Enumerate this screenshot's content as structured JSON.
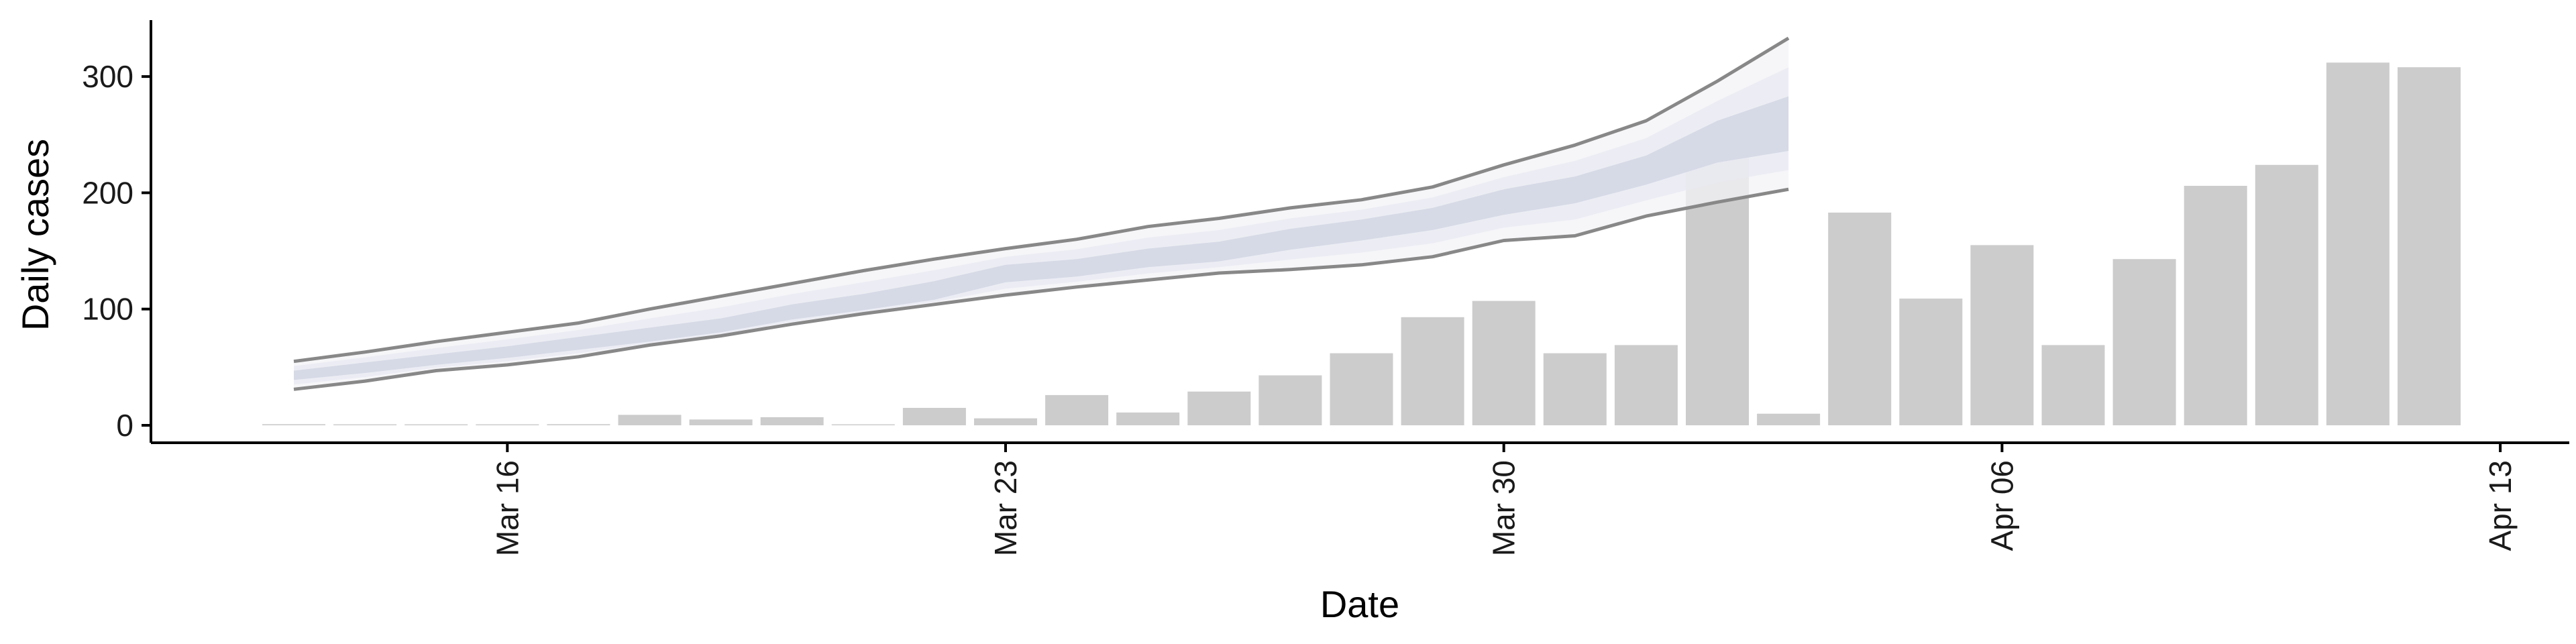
{
  "chart_data": {
    "type": "bar",
    "title": "",
    "xlabel": "Date",
    "ylabel": "Daily cases",
    "ylim": [
      -15,
      350
    ],
    "x_ticks": [
      "Mar 16",
      "Mar 23",
      "Mar 30",
      "Apr 06",
      "Apr 13"
    ],
    "y_ticks": [
      0,
      100,
      200,
      300
    ],
    "grid": false,
    "legend": "none",
    "bars": {
      "dates": [
        "2020-03-13",
        "2020-03-14",
        "2020-03-15",
        "2020-03-16",
        "2020-03-17",
        "2020-03-18",
        "2020-03-19",
        "2020-03-20",
        "2020-03-21",
        "2020-03-22",
        "2020-03-23",
        "2020-03-24",
        "2020-03-25",
        "2020-03-26",
        "2020-03-27",
        "2020-03-28",
        "2020-03-29",
        "2020-03-30",
        "2020-03-31",
        "2020-04-01",
        "2020-04-02",
        "2020-04-03",
        "2020-04-04",
        "2020-04-05",
        "2020-04-06",
        "2020-04-07",
        "2020-04-08",
        "2020-04-09",
        "2020-04-10",
        "2020-04-11",
        "2020-04-12"
      ],
      "values": [
        1,
        0,
        0,
        0,
        1,
        9,
        5,
        7,
        0,
        15,
        6,
        26,
        11,
        29,
        43,
        62,
        93,
        107,
        62,
        69,
        245,
        10,
        183,
        109,
        155,
        69,
        143,
        206,
        224,
        312,
        308
      ],
      "color": "#cccccc"
    },
    "forecast": {
      "dates": [
        "2020-03-13",
        "2020-03-14",
        "2020-03-15",
        "2020-03-16",
        "2020-03-17",
        "2020-03-18",
        "2020-03-19",
        "2020-03-20",
        "2020-03-21",
        "2020-03-22",
        "2020-03-23",
        "2020-03-24",
        "2020-03-25",
        "2020-03-26",
        "2020-03-27",
        "2020-03-28",
        "2020-03-29",
        "2020-03-30",
        "2020-03-31",
        "2020-04-01",
        "2020-04-02",
        "2020-04-03"
      ],
      "outer_upper": [
        55,
        63,
        72,
        80,
        88,
        100,
        111,
        122,
        133,
        143,
        152,
        160,
        171,
        178,
        187,
        194,
        205,
        224,
        241,
        262,
        296,
        333
      ],
      "inner_upper": [
        47,
        54,
        61,
        68,
        76,
        84,
        92,
        104,
        113,
        124,
        138,
        143,
        152,
        158,
        169,
        177,
        187,
        203,
        214,
        232,
        262,
        283
      ],
      "inner_lower": [
        39,
        45,
        52,
        58,
        65,
        72,
        80,
        91,
        99,
        108,
        123,
        128,
        136,
        141,
        151,
        159,
        168,
        181,
        191,
        207,
        226,
        236
      ],
      "outer_lower": [
        31,
        38,
        47,
        52,
        59,
        69,
        77,
        87,
        96,
        104,
        112,
        119,
        125,
        131,
        134,
        138,
        145,
        159,
        163,
        180,
        192,
        203
      ],
      "outer_color": "#f3f3f7",
      "inner_color": "#d4d7e4",
      "mid_color": "#e8e9f1",
      "line_color": "#888888"
    }
  }
}
